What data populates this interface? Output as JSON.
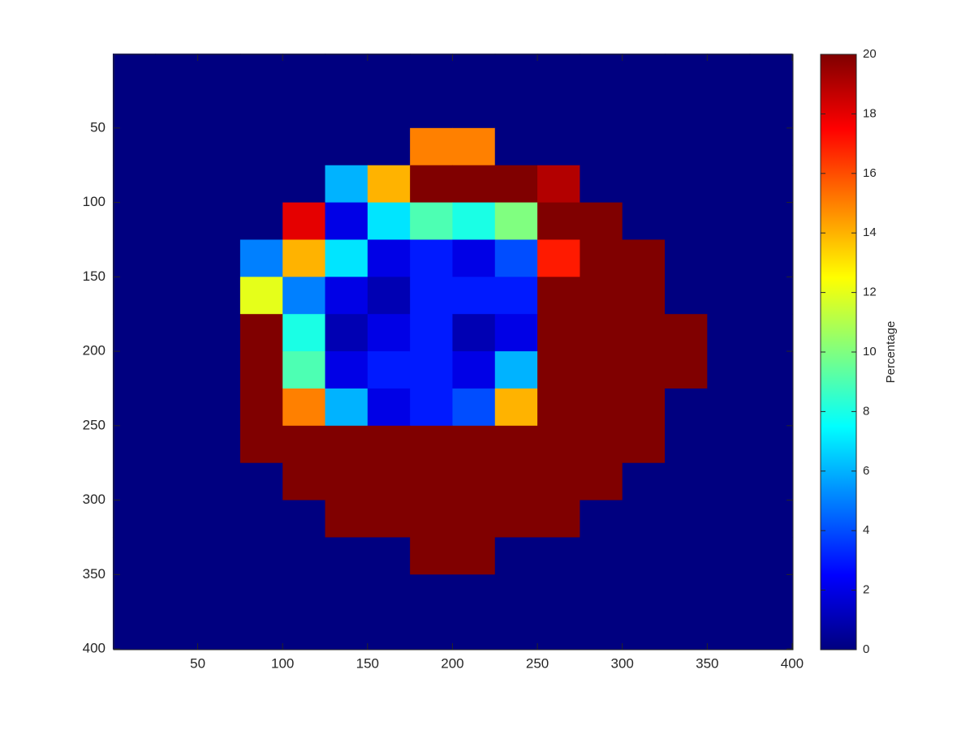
{
  "chart_data": {
    "type": "heatmap",
    "colormap": "jet",
    "x": [
      12.5,
      37.5,
      62.5,
      87.5,
      112.5,
      137.5,
      162.5,
      187.5,
      212.5,
      237.5,
      262.5,
      287.5,
      312.5,
      337.5,
      362.5,
      387.5
    ],
    "y": [
      12.5,
      37.5,
      62.5,
      87.5,
      112.5,
      137.5,
      162.5,
      187.5,
      212.5,
      237.5,
      262.5,
      287.5,
      312.5,
      337.5,
      362.5,
      387.5
    ],
    "z": [
      [
        0,
        0,
        0,
        0,
        0,
        0,
        0,
        0,
        0,
        0,
        0,
        0,
        0,
        0,
        0,
        0
      ],
      [
        0,
        0,
        0,
        0,
        0,
        0,
        0,
        0,
        0,
        0,
        0,
        0,
        0,
        0,
        0,
        0
      ],
      [
        0,
        0,
        0,
        0,
        0,
        0,
        0,
        15,
        15,
        0,
        0,
        0,
        0,
        0,
        0,
        0
      ],
      [
        0,
        0,
        0,
        0,
        0,
        6,
        14,
        20,
        20,
        20,
        19,
        0,
        0,
        0,
        0,
        0
      ],
      [
        0,
        0,
        0,
        0,
        18,
        2,
        7,
        9,
        8,
        10,
        20,
        20,
        0,
        0,
        0,
        0
      ],
      [
        0,
        0,
        0,
        5,
        14,
        7,
        2,
        3,
        2,
        4,
        17,
        20,
        20,
        0,
        0,
        0
      ],
      [
        0,
        0,
        0,
        12,
        5,
        2,
        1,
        3,
        3,
        3,
        20,
        20,
        20,
        0,
        0,
        0
      ],
      [
        0,
        0,
        0,
        20,
        8,
        1,
        2,
        3,
        1,
        2,
        20,
        20,
        20,
        20,
        0,
        0
      ],
      [
        0,
        0,
        0,
        20,
        9,
        2,
        3,
        3,
        2,
        6,
        20,
        20,
        20,
        20,
        0,
        0
      ],
      [
        0,
        0,
        0,
        20,
        15,
        6,
        2,
        3,
        4,
        14,
        20,
        20,
        20,
        0,
        0,
        0
      ],
      [
        0,
        0,
        0,
        20,
        20,
        20,
        20,
        20,
        20,
        20,
        20,
        20,
        20,
        0,
        0,
        0
      ],
      [
        0,
        0,
        0,
        0,
        20,
        20,
        20,
        20,
        20,
        20,
        20,
        20,
        0,
        0,
        0,
        0
      ],
      [
        0,
        0,
        0,
        0,
        0,
        20,
        20,
        20,
        20,
        20,
        20,
        0,
        0,
        0,
        0,
        0
      ],
      [
        0,
        0,
        0,
        0,
        0,
        0,
        0,
        20,
        20,
        0,
        0,
        0,
        0,
        0,
        0,
        0
      ],
      [
        0,
        0,
        0,
        0,
        0,
        0,
        0,
        0,
        0,
        0,
        0,
        0,
        0,
        0,
        0,
        0
      ],
      [
        0,
        0,
        0,
        0,
        0,
        0,
        0,
        0,
        0,
        0,
        0,
        0,
        0,
        0,
        0,
        0
      ]
    ],
    "xlim": [
      0.5,
      400.5
    ],
    "xticks": [
      50,
      100,
      150,
      200,
      250,
      300,
      350,
      400
    ],
    "ylim": [
      0.5,
      400.5
    ],
    "yticks": [
      50,
      100,
      150,
      200,
      250,
      300,
      350,
      400
    ],
    "y_reversed": true,
    "clim": [
      0,
      20
    ],
    "cticks": [
      0,
      2,
      4,
      6,
      8,
      10,
      12,
      14,
      16,
      18,
      20
    ],
    "colorbar_label": "Percentage"
  }
}
